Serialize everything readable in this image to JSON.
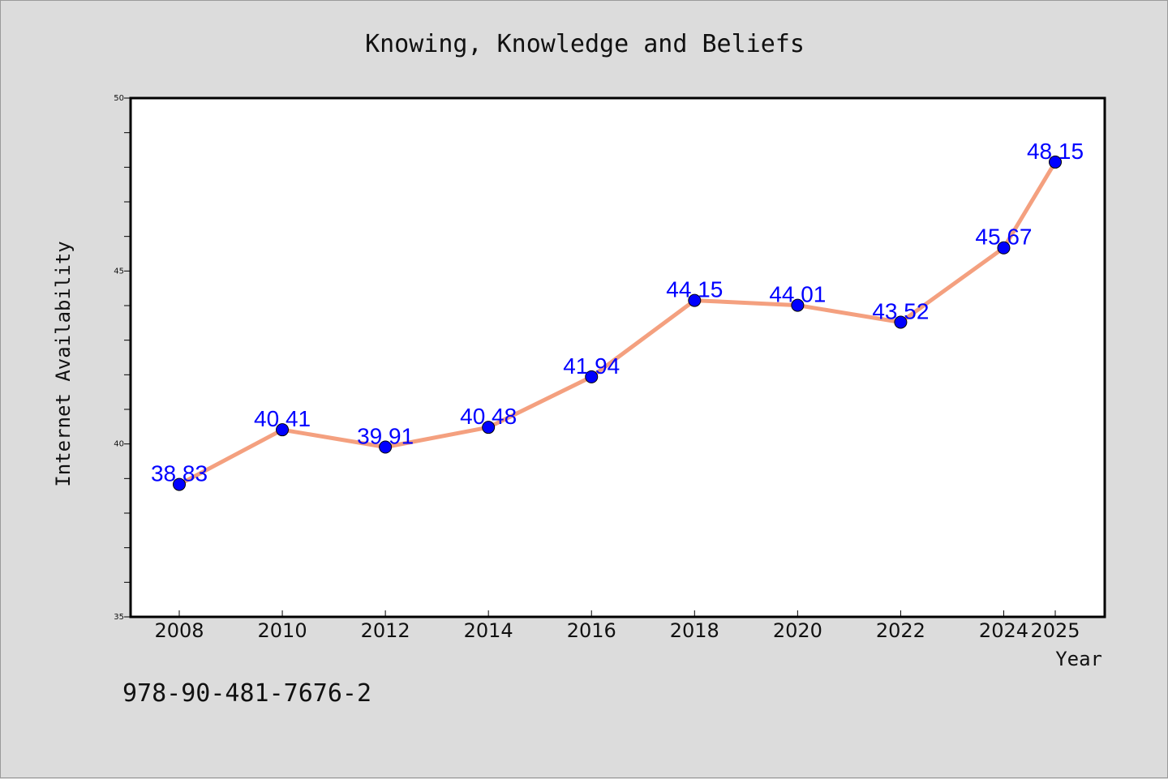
{
  "chart_data": {
    "type": "line",
    "title": "Knowing, Knowledge and Beliefs",
    "xlabel": "Year",
    "ylabel": "Internet Availability",
    "x": [
      "2008",
      "2010",
      "2012",
      "2014",
      "2016",
      "2018",
      "2020",
      "2022",
      "2024",
      "2025"
    ],
    "series": [
      {
        "values": [
          38.83,
          40.41,
          39.91,
          40.48,
          41.94,
          44.15,
          44.01,
          43.52,
          45.67,
          48.15
        ],
        "line_color": "#f4a07f",
        "marker_color": "#0000ff"
      }
    ],
    "data_labels": [
      "38.83",
      "40.41",
      "39.91",
      "40.48",
      "41.94",
      "44.15",
      "44.01",
      "43.52",
      "45.67",
      "48.15"
    ],
    "ylim": [
      35,
      50
    ],
    "yticks": [
      "35",
      "40",
      "45",
      "50"
    ],
    "grid": false,
    "legend": "none"
  },
  "footer": {
    "isbn": "978-90-481-7676-2"
  },
  "colors": {
    "background": "#dcdcdc",
    "plot_background": "#ffffff",
    "axis": "#000000"
  }
}
